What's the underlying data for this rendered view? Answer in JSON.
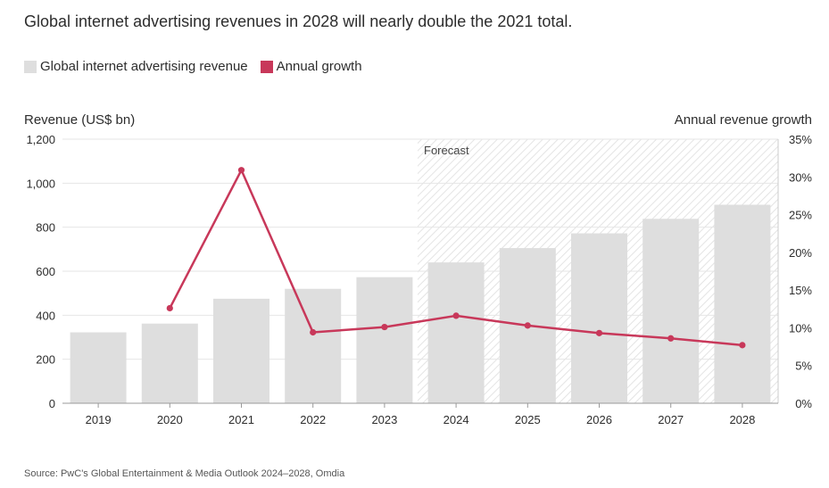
{
  "title": "Global internet advertising revenues in 2028 will nearly double the 2021 total.",
  "legend": {
    "bars_label": "Global internet advertising revenue",
    "line_label": "Annual growth"
  },
  "axis": {
    "left_title": "Revenue (US$ bn)",
    "right_title": "Annual revenue growth"
  },
  "forecast_label": "Forecast",
  "source": "Source: PwC's Global Entertainment & Media Outlook 2024–2028, Omdia",
  "colors": {
    "bar": "#dedede",
    "line": "#c8385a",
    "grid": "#e6e6e6",
    "forecast_hatch": "#e2e2e2"
  },
  "chart_data": {
    "type": "bar",
    "categories": [
      "2019",
      "2020",
      "2021",
      "2022",
      "2023",
      "2024",
      "2025",
      "2026",
      "2027",
      "2028"
    ],
    "series": [
      {
        "name": "Global internet advertising revenue",
        "type": "bar",
        "axis": "left",
        "values": [
          322,
          362,
          475,
          520,
          573,
          640,
          705,
          772,
          838,
          902
        ]
      },
      {
        "name": "Annual growth",
        "type": "line",
        "axis": "right",
        "values": [
          null,
          12.6,
          30.9,
          9.4,
          10.1,
          11.6,
          10.3,
          9.3,
          8.6,
          7.7
        ]
      }
    ],
    "forecast_start": "2024",
    "ylim_left": [
      0,
      1200
    ],
    "yticks_left": [
      "0",
      "200",
      "400",
      "600",
      "800",
      "1,000",
      "1,200"
    ],
    "ylim_right": [
      0,
      35
    ],
    "yticks_right": [
      "0%",
      "5%",
      "10%",
      "15%",
      "20%",
      "25%",
      "30%",
      "35%"
    ],
    "ylabel_left": "Revenue (US$ bn)",
    "ylabel_right": "Annual revenue growth",
    "grid": true,
    "legend_position": "top-left"
  }
}
